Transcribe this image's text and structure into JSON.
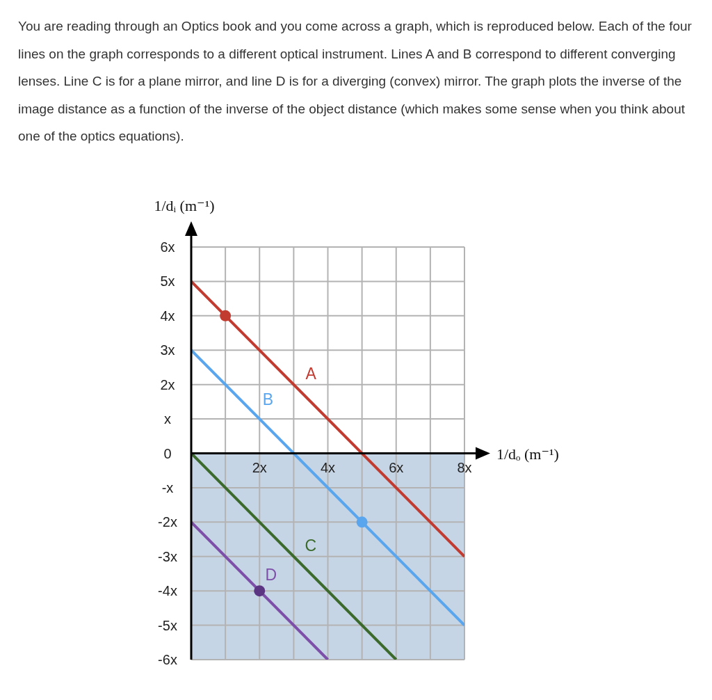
{
  "chart_data": {
    "type": "line",
    "annotations": [
      "You are reading through an Optics book and you come across a graph, which is reproduced below. Each of the four lines on the graph corresponds to a different optical instrument. Lines A and B correspond to different converging lenses. Line C is for a plane mirror, and line D is for a diverging (convex) mirror. The graph plots the inverse of the image distance as a function of the inverse of the object distance (which makes some sense when you think about one of the optics equations)."
    ],
    "xlabel": "1/dₒ (m⁻¹)",
    "ylabel": "1/dᵢ (m⁻¹)",
    "series": [
      {
        "name": "A",
        "color": "#c23b30",
        "x": [
          0,
          8
        ],
        "values": [
          5,
          -3
        ]
      },
      {
        "name": "B",
        "color": "#5aa6ee",
        "x": [
          0,
          8
        ],
        "values": [
          3,
          -5
        ]
      },
      {
        "name": "C",
        "color": "#3b6a2c",
        "x": [
          0,
          6
        ],
        "values": [
          0,
          -6
        ]
      },
      {
        "name": "D",
        "color": "#7d4fa8",
        "x": [
          0,
          4
        ],
        "values": [
          -2,
          -6
        ]
      },
      {
        "type": "scatter",
        "marker": "circle",
        "x": [
          1,
          5,
          2
        ],
        "values": [
          4,
          -2,
          -4
        ],
        "colors": [
          "#c23b30",
          "#5aa6ee",
          "#5b3482"
        ]
      }
    ],
    "xlim": [
      0,
      8
    ],
    "ylim": [
      -6,
      6
    ],
    "xticks": [
      {
        "value": 0,
        "label": null
      },
      {
        "value": 1,
        "label": null
      },
      {
        "value": 2,
        "label": "2x"
      },
      {
        "value": 3,
        "label": null
      },
      {
        "value": 4,
        "label": "4x"
      },
      {
        "value": 5,
        "label": null
      },
      {
        "value": 6,
        "label": "6x"
      },
      {
        "value": 7,
        "label": null
      },
      {
        "value": 8,
        "label": "8x"
      }
    ],
    "yticks": [
      {
        "value": -6,
        "label": "-6x"
      },
      {
        "value": -5,
        "label": "-5x"
      },
      {
        "value": -4,
        "label": "-4x"
      },
      {
        "value": -3,
        "label": "-3x"
      },
      {
        "value": -2,
        "label": "-2x"
      },
      {
        "value": -1,
        "label": "-x"
      },
      0,
      {
        "value": 1,
        "label": "x"
      },
      {
        "value": 2,
        "label": "2x"
      },
      {
        "value": 3,
        "label": "3x"
      },
      {
        "value": 4,
        "label": "4x"
      },
      {
        "value": 5,
        "label": "5x"
      },
      {
        "value": 6,
        "label": "6x"
      }
    ],
    "grid": true,
    "bands": [
      {
        "axis": "y",
        "from": -6,
        "to": 0,
        "color": "#c6d5e5"
      }
    ]
  }
}
